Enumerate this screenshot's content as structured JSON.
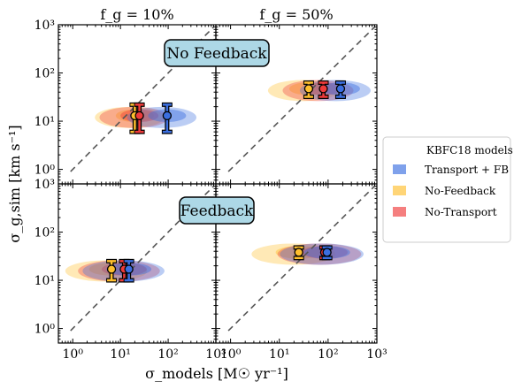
{
  "chart_data": {
    "type": "scatter",
    "xlabel": "σ_models [M☉ yr⁻¹]",
    "ylabel": "σ_g,sim [km s⁻¹]",
    "xscale": "log",
    "yscale": "log",
    "xlim": [
      0.5,
      1000
    ],
    "ylim": [
      0.5,
      1000
    ],
    "x_tick_labels": [
      "10⁰",
      "10¹",
      "10²",
      "10³"
    ],
    "y_tick_labels": [
      "10⁰",
      "10¹",
      "10²",
      "10³"
    ],
    "column_titles": [
      "f_g = 10%",
      "f_g = 50%"
    ],
    "row_labels": [
      "No Feedback",
      "Feedback"
    ],
    "legend": {
      "title": "KBFC18 models",
      "placement": "right",
      "entries": [
        {
          "label": "Transport + FB",
          "color": "#3b6fe0"
        },
        {
          "label": "No-Feedback",
          "color": "#ffbf2e"
        },
        {
          "label": "No-Transport",
          "color": "#ef3b3b"
        }
      ]
    },
    "one_to_one_line": true,
    "panels": [
      {
        "row": 0,
        "col": 0,
        "points": [
          {
            "model": "No-Feedback",
            "x": 20,
            "y": 13,
            "ylo": 6,
            "yhi": 22
          },
          {
            "model": "No-Transport",
            "x": 25,
            "y": 13,
            "ylo": 6,
            "yhi": 22
          },
          {
            "model": "Transport + FB",
            "x": 95,
            "y": 13,
            "ylo": 6,
            "yhi": 22
          }
        ]
      },
      {
        "row": 0,
        "col": 1,
        "points": [
          {
            "model": "No-Feedback",
            "x": 40,
            "y": 47,
            "ylo": 32,
            "yhi": 63
          },
          {
            "model": "No-Transport",
            "x": 80,
            "y": 47,
            "ylo": 32,
            "yhi": 63
          },
          {
            "model": "Transport + FB",
            "x": 180,
            "y": 47,
            "ylo": 32,
            "yhi": 63
          }
        ]
      },
      {
        "row": 1,
        "col": 0,
        "points": [
          {
            "model": "No-Feedback",
            "x": 6.5,
            "y": 17,
            "ylo": 10,
            "yhi": 25
          },
          {
            "model": "No-Transport",
            "x": 12,
            "y": 17,
            "ylo": 10,
            "yhi": 25
          },
          {
            "model": "Transport + FB",
            "x": 15,
            "y": 17,
            "ylo": 10,
            "yhi": 25
          }
        ]
      },
      {
        "row": 1,
        "col": 1,
        "points": [
          {
            "model": "No-Feedback",
            "x": 25,
            "y": 38,
            "ylo": 29,
            "yhi": 48
          },
          {
            "model": "No-Transport",
            "x": 85,
            "y": 38,
            "ylo": 29,
            "yhi": 48
          },
          {
            "model": "Transport + FB",
            "x": 95,
            "y": 38,
            "ylo": 29,
            "yhi": 48
          }
        ]
      }
    ]
  }
}
